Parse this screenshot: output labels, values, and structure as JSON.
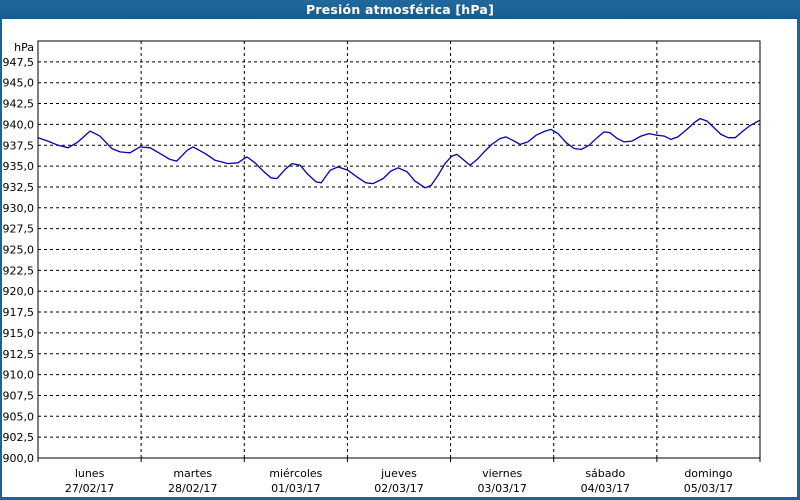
{
  "window": {
    "title": "Presión atmosférica [hPa]"
  },
  "colors": {
    "titlebar_bg": "#1c6396",
    "window_border": "#1c6396",
    "title_text": "#ffffff",
    "plot_background": "#ffffff",
    "grid_line": "#000000",
    "axis_frame": "#000000",
    "tick_text": "#000000",
    "series_line": "#0000bb"
  },
  "chart_data": {
    "type": "line",
    "title": "Presión atmosférica [hPa]",
    "ylabel": "hPa",
    "xlabel": "",
    "ylim": [
      900,
      950
    ],
    "ytick_step": 2.5,
    "grid": "dashed",
    "legend": "none",
    "ytick_values": [
      947.5,
      945.0,
      942.5,
      940.0,
      937.5,
      935.0,
      932.5,
      930.0,
      927.5,
      925.0,
      922.5,
      920.0,
      917.5,
      915.0,
      912.5,
      910.0,
      907.5,
      905.0,
      902.5,
      900.0
    ],
    "ytick_labels": [
      "947,5",
      "945,0",
      "942,5",
      "940,0",
      "937,5",
      "935,0",
      "932,5",
      "930,0",
      "927,5",
      "925,0",
      "922,5",
      "920,0",
      "917,5",
      "915,0",
      "912,5",
      "910,0",
      "907,5",
      "905,0",
      "902,5",
      "900,0"
    ],
    "x_axis": {
      "span_hours": 168,
      "days": [
        {
          "name": "lunes",
          "date": "27/02/17"
        },
        {
          "name": "martes",
          "date": "28/02/17"
        },
        {
          "name": "miércoles",
          "date": "01/03/17"
        },
        {
          "name": "jueves",
          "date": "02/03/17"
        },
        {
          "name": "viernes",
          "date": "03/03/17"
        },
        {
          "name": "sábado",
          "date": "04/03/17"
        },
        {
          "name": "domingo",
          "date": "05/03/17"
        }
      ]
    },
    "series": [
      {
        "name": "Presión atmosférica",
        "unit": "hPa",
        "x_hours": [
          0,
          2.3,
          4.7,
          7,
          9.3,
          12.1,
          14.4,
          17.2,
          19.1,
          21.4,
          23.7,
          26.1,
          28.4,
          30.7,
          32.3,
          34.7,
          36.1,
          38.9,
          41.2,
          44.2,
          46.5,
          48.6,
          50.5,
          52.4,
          54.2,
          55.6,
          57.5,
          59.1,
          61,
          62.8,
          64.7,
          65.9,
          68,
          69.8,
          72.1,
          74.2,
          76.3,
          78,
          80.3,
          82.1,
          83.8,
          85.9,
          87.7,
          90.1,
          91.5,
          93.1,
          94.7,
          96.3,
          97.5,
          98.9,
          100.5,
          102.2,
          103.8,
          105.6,
          107.5,
          108.9,
          110.8,
          112.2,
          114,
          115.9,
          118,
          119.4,
          121,
          122.9,
          124.8,
          126.4,
          128.2,
          130.1,
          131.7,
          133.1,
          134.8,
          136.4,
          138.2,
          140.3,
          142.2,
          144,
          145.7,
          147.3,
          148.9,
          151,
          152.9,
          154.1,
          155.7,
          157.3,
          158.9,
          160.6,
          162.2,
          163.8,
          165.5,
          166.9,
          168
        ],
        "values": [
          938.4,
          938,
          937.5,
          937.2,
          937.9,
          939.2,
          938.6,
          937.1,
          936.7,
          936.6,
          937.3,
          937.2,
          936.5,
          935.8,
          935.6,
          936.9,
          937.3,
          936.5,
          935.7,
          935.3,
          935.4,
          936.1,
          935.4,
          934.4,
          933.6,
          933.5,
          934.6,
          935.3,
          935.1,
          934,
          933.1,
          933,
          934.5,
          934.9,
          934.5,
          933.7,
          933,
          932.9,
          933.5,
          934.4,
          934.8,
          934.3,
          933.2,
          932.4,
          932.7,
          933.9,
          935.3,
          936.2,
          936.4,
          935.8,
          935.1,
          935.8,
          936.7,
          937.6,
          938.3,
          938.5,
          938,
          937.6,
          937.9,
          938.7,
          939.2,
          939.4,
          938.9,
          937.8,
          937.1,
          937,
          937.5,
          938.4,
          939.1,
          939,
          938.3,
          937.9,
          938,
          938.6,
          938.9,
          938.7,
          938.6,
          938.2,
          938.5,
          939.4,
          940.3,
          940.7,
          940.4,
          939.6,
          938.8,
          938.4,
          938.4,
          939.1,
          939.8,
          940.2,
          940.5
        ]
      }
    ]
  }
}
